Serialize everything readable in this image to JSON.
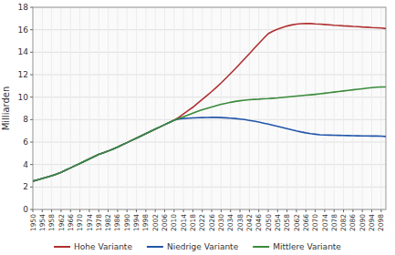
{
  "chart_data": {
    "type": "line",
    "y_label": "Milliarden",
    "x": [
      1950,
      1952,
      1954,
      1956,
      1958,
      1960,
      1962,
      1964,
      1966,
      1968,
      1970,
      1972,
      1974,
      1976,
      1978,
      1980,
      1982,
      1984,
      1986,
      1988,
      1990,
      1992,
      1994,
      1996,
      1998,
      2000,
      2002,
      2004,
      2006,
      2008,
      2010,
      2012,
      2014,
      2016,
      2018,
      2020,
      2022,
      2024,
      2026,
      2028,
      2030,
      2032,
      2034,
      2036,
      2038,
      2040,
      2042,
      2044,
      2046,
      2048,
      2050,
      2052,
      2054,
      2056,
      2058,
      2060,
      2062,
      2064,
      2066,
      2068,
      2070,
      2072,
      2074,
      2076,
      2078,
      2080,
      2082,
      2084,
      2086,
      2088,
      2090,
      2092,
      2094,
      2096,
      2098,
      2100
    ],
    "series": [
      {
        "name": "Hohe Variante",
        "color": "#b03030",
        "values": [
          2.52,
          2.63,
          2.75,
          2.87,
          3.0,
          3.15,
          3.31,
          3.5,
          3.7,
          3.9,
          4.1,
          4.3,
          4.5,
          4.7,
          4.9,
          5.05,
          5.2,
          5.37,
          5.55,
          5.75,
          5.95,
          6.15,
          6.35,
          6.55,
          6.75,
          6.95,
          7.15,
          7.35,
          7.55,
          7.75,
          7.95,
          8.2,
          8.5,
          8.8,
          9.1,
          9.45,
          9.8,
          10.15,
          10.5,
          10.88,
          11.27,
          11.68,
          12.1,
          12.53,
          12.97,
          13.42,
          13.87,
          14.33,
          14.78,
          15.22,
          15.65,
          15.87,
          16.05,
          16.2,
          16.33,
          16.43,
          16.5,
          16.54,
          16.56,
          16.55,
          16.52,
          16.5,
          16.47,
          16.44,
          16.4,
          16.38,
          16.35,
          16.33,
          16.3,
          16.28,
          16.25,
          16.23,
          16.2,
          16.18,
          16.15,
          16.1
        ]
      },
      {
        "name": "Niedrige Variante",
        "color": "#2255aa",
        "values": [
          2.52,
          2.63,
          2.75,
          2.87,
          3.0,
          3.15,
          3.31,
          3.5,
          3.7,
          3.9,
          4.1,
          4.3,
          4.5,
          4.7,
          4.9,
          5.05,
          5.2,
          5.37,
          5.55,
          5.75,
          5.95,
          6.15,
          6.35,
          6.55,
          6.75,
          6.95,
          7.15,
          7.35,
          7.55,
          7.75,
          7.95,
          8.05,
          8.1,
          8.13,
          8.15,
          8.17,
          8.18,
          8.19,
          8.2,
          8.2,
          8.18,
          8.16,
          8.13,
          8.1,
          8.05,
          8.0,
          7.93,
          7.86,
          7.78,
          7.69,
          7.6,
          7.5,
          7.4,
          7.3,
          7.19,
          7.09,
          6.99,
          6.9,
          6.82,
          6.75,
          6.7,
          6.65,
          6.63,
          6.62,
          6.61,
          6.6,
          6.59,
          6.58,
          6.57,
          6.56,
          6.55,
          6.55,
          6.54,
          6.54,
          6.53,
          6.5
        ]
      },
      {
        "name": "Mittlere Variante",
        "color": "#3a8a3a",
        "values": [
          2.52,
          2.63,
          2.75,
          2.87,
          3.0,
          3.15,
          3.31,
          3.5,
          3.7,
          3.9,
          4.1,
          4.3,
          4.5,
          4.7,
          4.9,
          5.05,
          5.2,
          5.37,
          5.55,
          5.75,
          5.95,
          6.15,
          6.35,
          6.55,
          6.75,
          6.95,
          7.15,
          7.35,
          7.55,
          7.75,
          7.95,
          8.1,
          8.25,
          8.42,
          8.58,
          8.73,
          8.87,
          9.0,
          9.13,
          9.25,
          9.36,
          9.45,
          9.54,
          9.62,
          9.68,
          9.73,
          9.77,
          9.8,
          9.82,
          9.85,
          9.87,
          9.9,
          9.93,
          9.97,
          10.01,
          10.05,
          10.09,
          10.13,
          10.17,
          10.21,
          10.25,
          10.3,
          10.35,
          10.4,
          10.45,
          10.5,
          10.55,
          10.6,
          10.65,
          10.7,
          10.75,
          10.8,
          10.85,
          10.88,
          10.9,
          10.9
        ]
      }
    ],
    "xlim": [
      1950,
      2100
    ],
    "xticks": [
      1950,
      1954,
      1958,
      1962,
      1966,
      1970,
      1974,
      1978,
      1982,
      1986,
      1990,
      1994,
      1998,
      2002,
      2006,
      2010,
      2014,
      2018,
      2022,
      2026,
      2030,
      2034,
      2038,
      2042,
      2046,
      2050,
      2054,
      2058,
      2062,
      2066,
      2070,
      2074,
      2078,
      2082,
      2086,
      2090,
      2094,
      2098
    ],
    "ylim": [
      0,
      18
    ],
    "yticks": [
      0,
      2,
      4,
      6,
      8,
      10,
      12,
      14,
      16,
      18
    ],
    "grid": true,
    "legend": "bottom"
  }
}
